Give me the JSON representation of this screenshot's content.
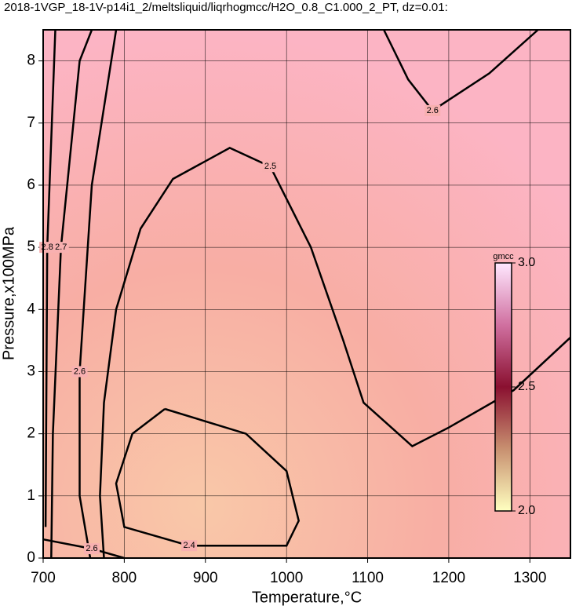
{
  "chart_data": {
    "type": "contour",
    "title": "2018-1VGP_18-1V-p14i1_2/meltsliquid/liqrhogmcc/H2O_0.8_C1.000_2_PT, dz=0.01:",
    "xlabel": "Temperature,°C",
    "ylabel": "Pressure,x100MPa",
    "xlim": [
      700,
      1350
    ],
    "ylim": [
      0,
      8.5
    ],
    "xticks": [
      700,
      800,
      900,
      1000,
      1100,
      1200,
      1300
    ],
    "yticks": [
      0,
      1,
      2,
      3,
      4,
      5,
      6,
      7,
      8
    ],
    "grid": true,
    "contours": [
      {
        "level": 2.4,
        "x": [
          850,
          950,
          1000,
          1015,
          1000,
          880,
          800,
          790,
          810,
          850
        ],
        "y": [
          2.4,
          2.0,
          1.4,
          0.6,
          0.2,
          0.2,
          0.5,
          1.2,
          2.0,
          2.4
        ]
      },
      {
        "level": 2.5,
        "x": [
          775,
          770,
          775,
          790,
          820,
          860,
          930,
          980,
          1030,
          1070,
          1095,
          1155,
          1200,
          1280,
          1350
        ],
        "y": [
          0,
          1,
          2.5,
          4,
          5.3,
          6.1,
          6.6,
          6.3,
          5,
          3.5,
          2.5,
          1.8,
          2.1,
          2.7,
          3.55
        ]
      },
      {
        "level": 2.6,
        "x": [
          758,
          745,
          745,
          760,
          790
        ],
        "y": [
          0,
          1,
          3,
          6,
          8.5
        ]
      },
      {
        "level": 2.6,
        "x": [
          1120,
          1150,
          1180,
          1250,
          1310
        ],
        "y": [
          8.5,
          7.7,
          7.2,
          7.8,
          8.5
        ]
      },
      {
        "level": 2.6,
        "x": [
          700,
          760,
          800
        ],
        "y": [
          0.3,
          0.15,
          0
        ]
      },
      {
        "level": 2.7,
        "x": [
          710,
          712,
          722,
          745,
          760
        ],
        "y": [
          0,
          2,
          5,
          8,
          8.5
        ]
      },
      {
        "level": 2.8,
        "x": [
          703,
          705,
          715
        ],
        "y": [
          0.5,
          5,
          8.5
        ]
      }
    ],
    "colorbar": {
      "label": "gmcc",
      "lim": [
        2.0,
        3.0
      ],
      "ticks": [
        {
          "value": 2.0,
          "label": "2.0"
        },
        2.5,
        {
          "value": 3.0,
          "label": "3.0"
        }
      ],
      "colors": [
        "#ffffc0",
        "#c89070",
        "#8a1030",
        "#d070a0",
        "#ffe8ff"
      ]
    }
  }
}
